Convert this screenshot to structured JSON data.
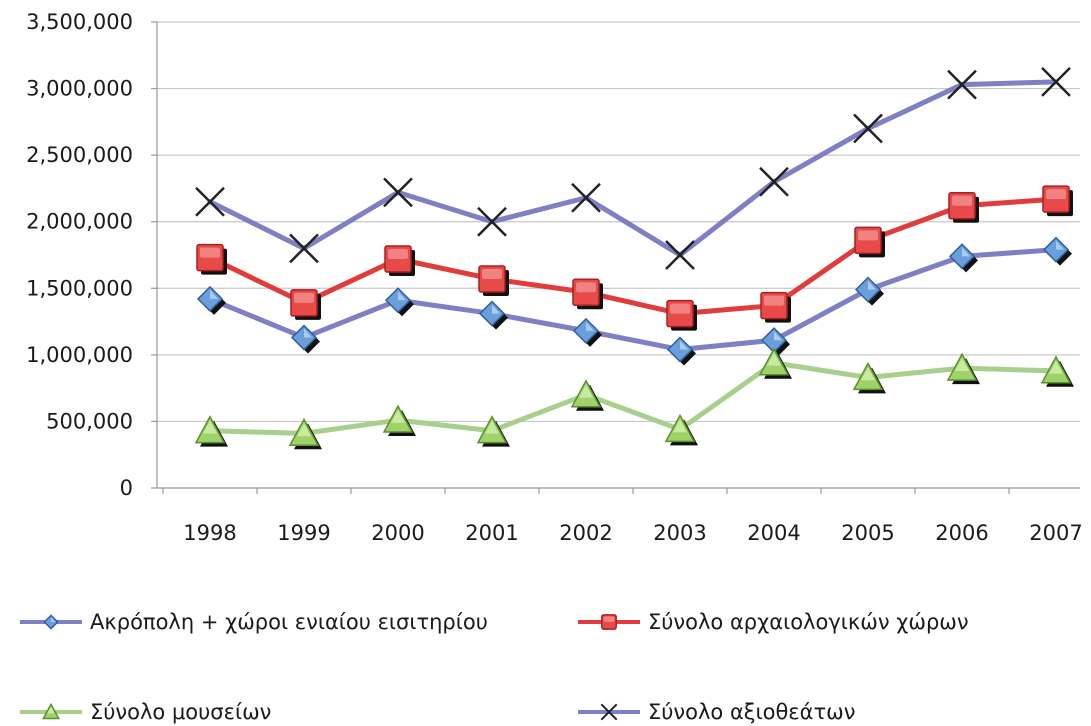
{
  "chart_data": {
    "type": "line",
    "title": "",
    "xlabel": "",
    "ylabel": "",
    "categories": [
      "1998",
      "1999",
      "2000",
      "2001",
      "2002",
      "2003",
      "2004",
      "2005",
      "2006",
      "2007"
    ],
    "ylim": [
      0,
      3500000
    ],
    "yticks": [
      0,
      500000,
      1000000,
      1500000,
      2000000,
      2500000,
      3000000,
      3500000
    ],
    "ytick_labels": [
      "0",
      "500,000",
      "1,000,000",
      "1,500,000",
      "2,000,000",
      "2,500,000",
      "3,000,000",
      "3,500,000"
    ],
    "grid": true,
    "legend_position": "bottom",
    "series": [
      {
        "name": "Ακρόπολη + χώροι ενιαίου εισιτηρίου",
        "marker": "diamond",
        "color": "#7f7fc4",
        "values": [
          1420000,
          1130000,
          1410000,
          1310000,
          1180000,
          1040000,
          1110000,
          1490000,
          1740000,
          1790000
        ]
      },
      {
        "name": "Σύνολο αρχαιολογικών χώρων",
        "marker": "square",
        "color": "#e03c3c",
        "values": [
          1730000,
          1390000,
          1720000,
          1570000,
          1470000,
          1310000,
          1370000,
          1860000,
          2120000,
          2170000
        ]
      },
      {
        "name": "Σύνολο μουσείων",
        "marker": "triangle",
        "color": "#a8cf8c",
        "values": [
          430000,
          410000,
          510000,
          430000,
          700000,
          440000,
          940000,
          830000,
          900000,
          880000
        ]
      },
      {
        "name": "Σύνολο αξιοθεάτων",
        "marker": "x",
        "color": "#7f7fc4",
        "values": [
          2150000,
          1800000,
          2220000,
          2000000,
          2180000,
          1750000,
          2300000,
          2700000,
          3030000,
          3050000
        ]
      }
    ]
  }
}
